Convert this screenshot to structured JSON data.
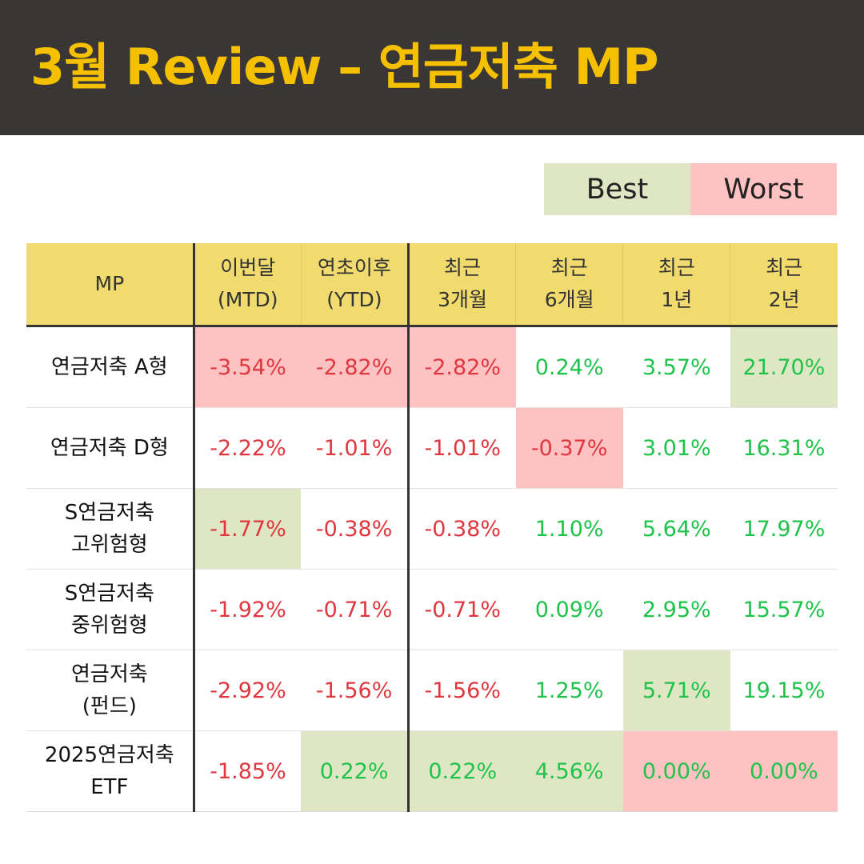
{
  "title": "3월 Review – 연금저축 MP",
  "legend": {
    "best": "Best",
    "worst": "Worst"
  },
  "colors": {
    "best": "#dfe6c4",
    "worst": "#ffc2c2",
    "header_bg": "#f1da6e",
    "negative_text": "#e0373f",
    "positive_text": "#1ec44a",
    "title": "#f5c000"
  },
  "columns": [
    {
      "line1": "MP",
      "line2": ""
    },
    {
      "line1": "이번달",
      "line2": "(MTD)"
    },
    {
      "line1": "연초이후",
      "line2": "(YTD)"
    },
    {
      "line1": "최근",
      "line2": "3개월"
    },
    {
      "line1": "최근",
      "line2": "6개월"
    },
    {
      "line1": "최근",
      "line2": "1년"
    },
    {
      "line1": "최근",
      "line2": "2년"
    }
  ],
  "rows": [
    {
      "name1": "연금저축 A형",
      "name2": "",
      "cells": [
        {
          "v": "-3.54%",
          "hl": "worst"
        },
        {
          "v": "-2.82%",
          "hl": "worst"
        },
        {
          "v": "-2.82%",
          "hl": "worst"
        },
        {
          "v": "0.24%",
          "hl": ""
        },
        {
          "v": "3.57%",
          "hl": ""
        },
        {
          "v": "21.70%",
          "hl": "best"
        }
      ]
    },
    {
      "name1": "연금저축 D형",
      "name2": "",
      "cells": [
        {
          "v": "-2.22%",
          "hl": ""
        },
        {
          "v": "-1.01%",
          "hl": ""
        },
        {
          "v": "-1.01%",
          "hl": ""
        },
        {
          "v": "-0.37%",
          "hl": "worst"
        },
        {
          "v": "3.01%",
          "hl": ""
        },
        {
          "v": "16.31%",
          "hl": ""
        }
      ]
    },
    {
      "name1": "S연금저축",
      "name2": "고위험형",
      "cells": [
        {
          "v": "-1.77%",
          "hl": "best"
        },
        {
          "v": "-0.38%",
          "hl": ""
        },
        {
          "v": "-0.38%",
          "hl": ""
        },
        {
          "v": "1.10%",
          "hl": ""
        },
        {
          "v": "5.64%",
          "hl": ""
        },
        {
          "v": "17.97%",
          "hl": ""
        }
      ]
    },
    {
      "name1": "S연금저축",
      "name2": "중위험형",
      "cells": [
        {
          "v": "-1.92%",
          "hl": ""
        },
        {
          "v": "-0.71%",
          "hl": ""
        },
        {
          "v": "-0.71%",
          "hl": ""
        },
        {
          "v": "0.09%",
          "hl": ""
        },
        {
          "v": "2.95%",
          "hl": ""
        },
        {
          "v": "15.57%",
          "hl": ""
        }
      ]
    },
    {
      "name1": "연금저축",
      "name2": "(펀드)",
      "cells": [
        {
          "v": "-2.92%",
          "hl": ""
        },
        {
          "v": "-1.56%",
          "hl": ""
        },
        {
          "v": "-1.56%",
          "hl": ""
        },
        {
          "v": "1.25%",
          "hl": ""
        },
        {
          "v": "5.71%",
          "hl": "best"
        },
        {
          "v": "19.15%",
          "hl": ""
        }
      ]
    },
    {
      "name1": "2025연금저축",
      "name2": "ETF",
      "cells": [
        {
          "v": "-1.85%",
          "hl": ""
        },
        {
          "v": "0.22%",
          "hl": "best"
        },
        {
          "v": "0.22%",
          "hl": "best"
        },
        {
          "v": "4.56%",
          "hl": "best"
        },
        {
          "v": "0.00%",
          "hl": "worst"
        },
        {
          "v": "0.00%",
          "hl": "worst"
        }
      ]
    }
  ]
}
